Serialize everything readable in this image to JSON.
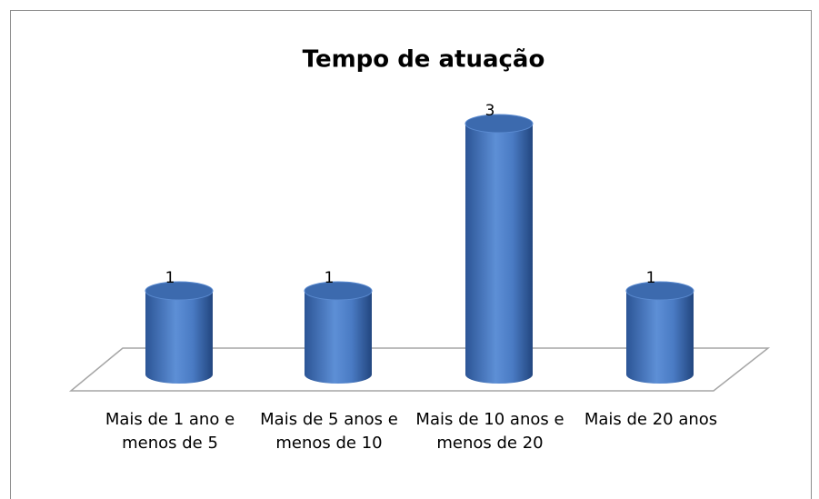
{
  "chart_data": {
    "type": "bar",
    "title": "Tempo de atuação",
    "categories": [
      "Mais de 1 ano e menos de 5",
      "Mais de 5 anos e menos de 10",
      "Mais de 10 anos e menos de 20",
      "Mais de 20 anos"
    ],
    "values": [
      1,
      1,
      3,
      1
    ],
    "color": "#4f81bd"
  }
}
